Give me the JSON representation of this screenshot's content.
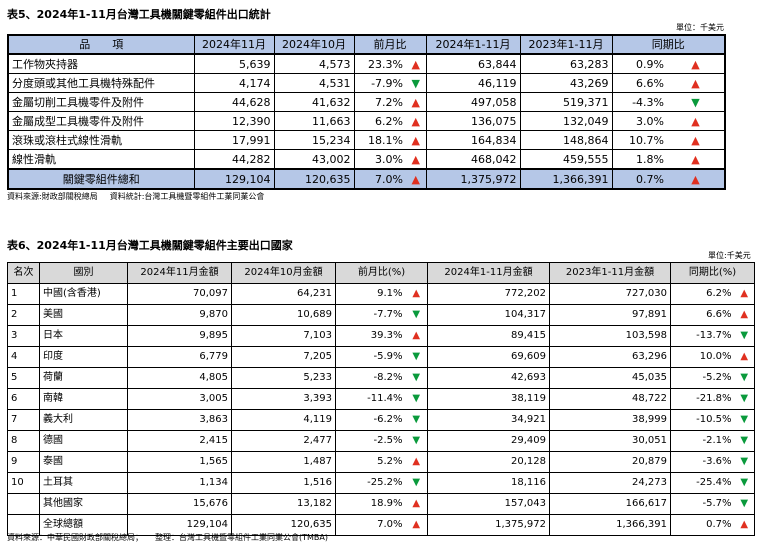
{
  "table5": {
    "title": "表5、2024年1-11月台灣工具機關鍵零組件出口統計",
    "unit": "單位：千美元",
    "headers": [
      "品　　項",
      "2024年11月",
      "2024年10月",
      "前月比",
      "2024年1-11月",
      "2023年1-11月",
      "同期比"
    ],
    "rows": [
      {
        "item": "工作物夾持器",
        "nov": "5,639",
        "oct": "4,573",
        "mom": "23.3%",
        "mom_dir": "▲",
        "ytd24": "63,844",
        "ytd23": "63,283",
        "yoy": "0.9%",
        "yoy_dir": "▲"
      },
      {
        "item": "分度頭或其他工具機特殊配件",
        "nov": "4,174",
        "oct": "4,531",
        "mom": "-7.9%",
        "mom_dir": "▼",
        "ytd24": "46,119",
        "ytd23": "43,269",
        "yoy": "6.6%",
        "yoy_dir": "▲"
      },
      {
        "item": "金屬切削工具機零件及附件",
        "nov": "44,628",
        "oct": "41,632",
        "mom": "7.2%",
        "mom_dir": "▲",
        "ytd24": "497,058",
        "ytd23": "519,371",
        "yoy": "-4.3%",
        "yoy_dir": "▼"
      },
      {
        "item": "金屬成型工具機零件及附件",
        "nov": "12,390",
        "oct": "11,663",
        "mom": "6.2%",
        "mom_dir": "▲",
        "ytd24": "136,075",
        "ytd23": "132,049",
        "yoy": "3.0%",
        "yoy_dir": "▲"
      },
      {
        "item": "滾珠或滾柱式線性滑軌",
        "nov": "17,991",
        "oct": "15,234",
        "mom": "18.1%",
        "mom_dir": "▲",
        "ytd24": "164,834",
        "ytd23": "148,864",
        "yoy": "10.7%",
        "yoy_dir": "▲"
      },
      {
        "item": "線性滑軌",
        "nov": "44,282",
        "oct": "43,002",
        "mom": "3.0%",
        "mom_dir": "▲",
        "ytd24": "468,042",
        "ytd23": "459,555",
        "yoy": "1.8%",
        "yoy_dir": "▲"
      }
    ],
    "total": {
      "item": "關鍵零組件總和",
      "nov": "129,104",
      "oct": "120,635",
      "mom": "7.0%",
      "mom_dir": "▲",
      "ytd24": "1,375,972",
      "ytd23": "1,366,391",
      "yoy": "0.7%",
      "yoy_dir": "▲"
    },
    "source": "資料來源:財政部關稅總局",
    "compiled": "資料統計:台灣工具機暨零組件工業同業公會"
  },
  "table6": {
    "title": "表6、2024年1-11月台灣工具機關鍵零組件主要出口國家",
    "unit": "單位:千美元",
    "headers": [
      "名次",
      "國別",
      "2024年11月金額",
      "2024年10月金額",
      "前月比(%)",
      "2024年1-11月金額",
      "2023年1-11月金額",
      "同期比(%)"
    ],
    "rows": [
      {
        "rank": "1",
        "country": "中國(含香港)",
        "nov": "70,097",
        "oct": "64,231",
        "mom": "9.1%",
        "mom_dir": "▲",
        "ytd24": "772,202",
        "ytd23": "727,030",
        "yoy": "6.2%",
        "yoy_dir": "▲"
      },
      {
        "rank": "2",
        "country": "美國",
        "nov": "9,870",
        "oct": "10,689",
        "mom": "-7.7%",
        "mom_dir": "▼",
        "ytd24": "104,317",
        "ytd23": "97,891",
        "yoy": "6.6%",
        "yoy_dir": "▲"
      },
      {
        "rank": "3",
        "country": "日本",
        "nov": "9,895",
        "oct": "7,103",
        "mom": "39.3%",
        "mom_dir": "▲",
        "ytd24": "89,415",
        "ytd23": "103,598",
        "yoy": "-13.7%",
        "yoy_dir": "▼"
      },
      {
        "rank": "4",
        "country": "印度",
        "nov": "6,779",
        "oct": "7,205",
        "mom": "-5.9%",
        "mom_dir": "▼",
        "ytd24": "69,609",
        "ytd23": "63,296",
        "yoy": "10.0%",
        "yoy_dir": "▲"
      },
      {
        "rank": "5",
        "country": "荷蘭",
        "nov": "4,805",
        "oct": "5,233",
        "mom": "-8.2%",
        "mom_dir": "▼",
        "ytd24": "42,693",
        "ytd23": "45,035",
        "yoy": "-5.2%",
        "yoy_dir": "▼"
      },
      {
        "rank": "6",
        "country": "南韓",
        "nov": "3,005",
        "oct": "3,393",
        "mom": "-11.4%",
        "mom_dir": "▼",
        "ytd24": "38,119",
        "ytd23": "48,722",
        "yoy": "-21.8%",
        "yoy_dir": "▼"
      },
      {
        "rank": "7",
        "country": "義大利",
        "nov": "3,863",
        "oct": "4,119",
        "mom": "-6.2%",
        "mom_dir": "▼",
        "ytd24": "34,921",
        "ytd23": "38,999",
        "yoy": "-10.5%",
        "yoy_dir": "▼"
      },
      {
        "rank": "8",
        "country": "德國",
        "nov": "2,415",
        "oct": "2,477",
        "mom": "-2.5%",
        "mom_dir": "▼",
        "ytd24": "29,409",
        "ytd23": "30,051",
        "yoy": "-2.1%",
        "yoy_dir": "▼"
      },
      {
        "rank": "9",
        "country": "泰國",
        "nov": "1,565",
        "oct": "1,487",
        "mom": "5.2%",
        "mom_dir": "▲",
        "ytd24": "20,128",
        "ytd23": "20,879",
        "yoy": "-3.6%",
        "yoy_dir": "▼"
      },
      {
        "rank": "10",
        "country": "土耳其",
        "nov": "1,134",
        "oct": "1,516",
        "mom": "-25.2%",
        "mom_dir": "▼",
        "ytd24": "18,116",
        "ytd23": "24,273",
        "yoy": "-25.4%",
        "yoy_dir": "▼"
      },
      {
        "rank": "",
        "country": "其他國家",
        "nov": "15,676",
        "oct": "13,182",
        "mom": "18.9%",
        "mom_dir": "▲",
        "ytd24": "157,043",
        "ytd23": "166,617",
        "yoy": "-5.7%",
        "yoy_dir": "▼"
      },
      {
        "rank": "",
        "country": "全球總額",
        "nov": "129,104",
        "oct": "120,635",
        "mom": "7.0%",
        "mom_dir": "▲",
        "ytd24": "1,375,972",
        "ytd23": "1,366,391",
        "yoy": "0.7%",
        "yoy_dir": "▲"
      }
    ],
    "source": "資料來源：中華民國財政部關稅總局；",
    "compiled": "整理：台灣工具機暨零組件工業同業公會(TMBA)"
  },
  "colors": {
    "up": "#e03020",
    "down": "#0a9a3c",
    "header5": "#b5c7e7",
    "header6": "#d9d9d9"
  }
}
